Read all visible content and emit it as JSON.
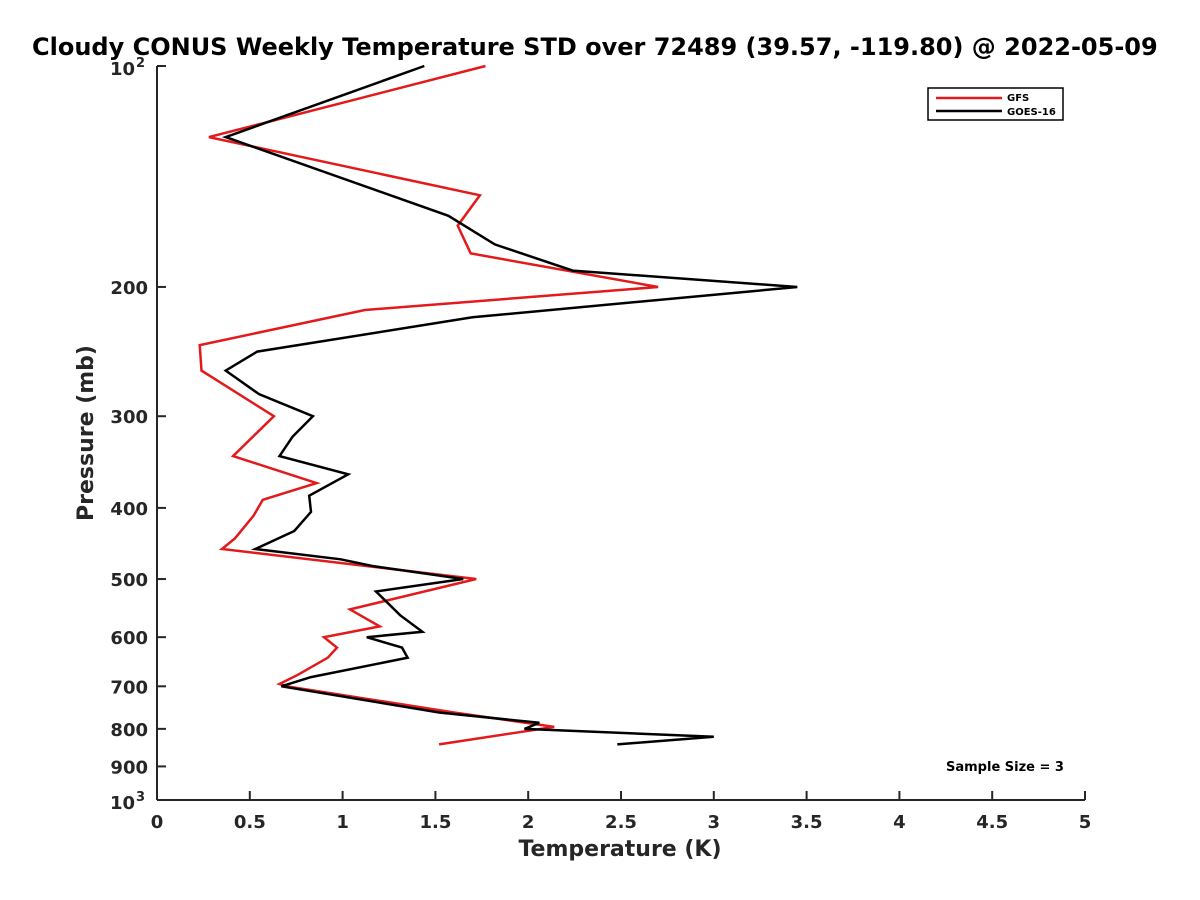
{
  "chart_data": {
    "type": "line",
    "title": "Cloudy CONUS Weekly Temperature STD over 72489 (39.57, -119.80) @ 2022-05-09",
    "xlabel": "Temperature (K)",
    "ylabel": "Pressure (mb)",
    "xlim": [
      0,
      5
    ],
    "ylim": [
      100,
      1000
    ],
    "y_scale": "log",
    "y_reversed": true,
    "grid": false,
    "legend_position": "top-right",
    "x_ticks": [
      "0",
      "0.5",
      "1",
      "1.5",
      "2",
      "2.5",
      "3",
      "3.5",
      "4",
      "4.5",
      "5"
    ],
    "y_ticks": [
      {
        "value": 100,
        "base": "10",
        "exp": "2"
      },
      {
        "value": 200,
        "label": "200"
      },
      {
        "value": 300,
        "label": "300"
      },
      {
        "value": 400,
        "label": "400"
      },
      {
        "value": 500,
        "label": "500"
      },
      {
        "value": 600,
        "label": "600"
      },
      {
        "value": 700,
        "label": "700"
      },
      {
        "value": 800,
        "label": "800"
      },
      {
        "value": 900,
        "label": "900"
      },
      {
        "value": 1000,
        "base": "10",
        "exp": "3"
      }
    ],
    "series": [
      {
        "name": "GFS",
        "color": "#e31a1c",
        "points": [
          [
            1.77,
            100
          ],
          [
            0.28,
            125
          ],
          [
            1.74,
            150
          ],
          [
            1.62,
            165
          ],
          [
            1.69,
            180
          ],
          [
            2.7,
            200
          ],
          [
            1.12,
            215
          ],
          [
            0.23,
            240
          ],
          [
            0.24,
            260
          ],
          [
            0.63,
            300
          ],
          [
            0.41,
            340
          ],
          [
            0.86,
            370
          ],
          [
            0.57,
            390
          ],
          [
            0.52,
            410
          ],
          [
            0.42,
            440
          ],
          [
            0.35,
            455
          ],
          [
            1.72,
            500
          ],
          [
            1.04,
            550
          ],
          [
            1.2,
            580
          ],
          [
            0.9,
            600
          ],
          [
            0.97,
            620
          ],
          [
            0.92,
            640
          ],
          [
            0.76,
            675
          ],
          [
            0.66,
            695
          ],
          [
            0.7,
            700
          ],
          [
            1.6,
            760
          ],
          [
            2.14,
            795
          ],
          [
            1.93,
            810
          ],
          [
            1.52,
            840
          ]
        ]
      },
      {
        "name": "GOES-16",
        "color": "#000000",
        "points": [
          [
            1.44,
            100
          ],
          [
            0.37,
            125
          ],
          [
            1.57,
            160
          ],
          [
            1.82,
            175
          ],
          [
            2.24,
            190
          ],
          [
            3.45,
            200
          ],
          [
            1.7,
            220
          ],
          [
            0.54,
            245
          ],
          [
            0.37,
            260
          ],
          [
            0.55,
            280
          ],
          [
            0.84,
            300
          ],
          [
            0.73,
            320
          ],
          [
            0.66,
            340
          ],
          [
            1.03,
            360
          ],
          [
            0.82,
            385
          ],
          [
            0.83,
            405
          ],
          [
            0.74,
            430
          ],
          [
            0.53,
            455
          ],
          [
            0.99,
            470
          ],
          [
            1.16,
            480
          ],
          [
            1.65,
            500
          ],
          [
            1.18,
            520
          ],
          [
            1.31,
            560
          ],
          [
            1.43,
            590
          ],
          [
            1.13,
            600
          ],
          [
            1.32,
            620
          ],
          [
            1.35,
            640
          ],
          [
            0.83,
            680
          ],
          [
            0.67,
            700
          ],
          [
            1.52,
            760
          ],
          [
            2.06,
            785
          ],
          [
            1.98,
            800
          ],
          [
            3.0,
            820
          ],
          [
            2.48,
            840
          ]
        ]
      }
    ],
    "annotation": "Sample Size = 3"
  }
}
